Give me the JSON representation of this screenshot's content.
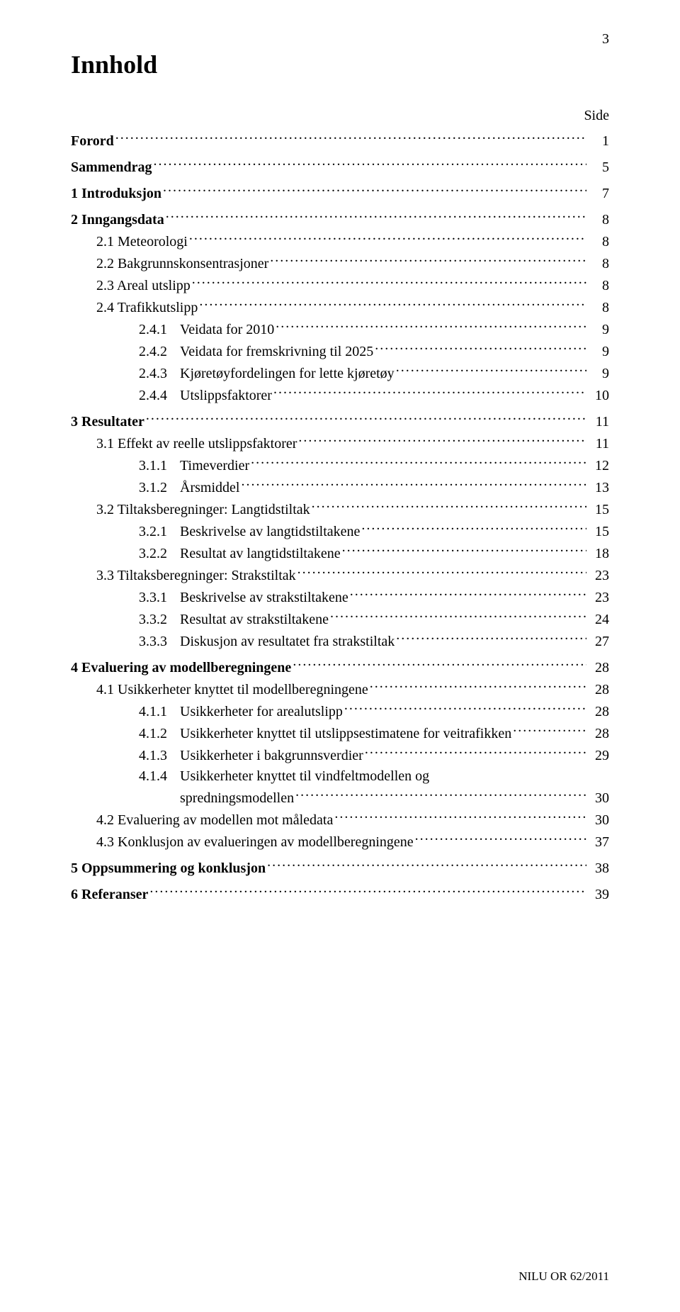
{
  "page_number_top": "3",
  "title": "Innhold",
  "side_label": "Side",
  "footer": "NILU OR 62/2011",
  "fonts": {
    "body_family": "Times New Roman",
    "title_size_pt": 28,
    "body_size_pt": 15
  },
  "colors": {
    "background": "#ffffff",
    "text": "#000000"
  },
  "toc": [
    {
      "bold": true,
      "indent": 0,
      "text": "Forord",
      "page": "1",
      "spacer_after": true
    },
    {
      "bold": true,
      "indent": 0,
      "text": "Sammendrag",
      "page": "5",
      "spacer_after": true
    },
    {
      "bold": true,
      "indent": 0,
      "text": "1   Introduksjon",
      "page": "7",
      "spacer_after": true
    },
    {
      "bold": true,
      "indent": 0,
      "text": "2   Inngangsdata",
      "page": "8"
    },
    {
      "bold": false,
      "indent": 1,
      "text": "2.1 Meteorologi",
      "page": "8"
    },
    {
      "bold": false,
      "indent": 1,
      "text": "2.2 Bakgrunnskonsentrasjoner",
      "page": "8"
    },
    {
      "bold": false,
      "indent": 1,
      "text": "2.3 Areal utslipp",
      "page": "8"
    },
    {
      "bold": false,
      "indent": 1,
      "text": "2.4 Trafikkutslipp",
      "page": "8"
    },
    {
      "bold": false,
      "indent": 2,
      "num": "2.4.1",
      "text": "Veidata for 2010",
      "page": "9"
    },
    {
      "bold": false,
      "indent": 2,
      "num": "2.4.2",
      "text": "Veidata for fremskrivning til 2025",
      "page": "9"
    },
    {
      "bold": false,
      "indent": 2,
      "num": "2.4.3",
      "text": "Kjøretøyfordelingen for lette kjøretøy",
      "page": "9"
    },
    {
      "bold": false,
      "indent": 2,
      "num": "2.4.4",
      "text": "Utslippsfaktorer",
      "page": "10",
      "spacer_after": true
    },
    {
      "bold": true,
      "indent": 0,
      "text": "3   Resultater",
      "page": "11"
    },
    {
      "bold": false,
      "indent": 1,
      "text": "3.1 Effekt av reelle utslippsfaktorer",
      "page": "11"
    },
    {
      "bold": false,
      "indent": 2,
      "num": "3.1.1",
      "text": "Timeverdier",
      "page": "12"
    },
    {
      "bold": false,
      "indent": 2,
      "num": "3.1.2",
      "text": "Årsmiddel",
      "page": "13"
    },
    {
      "bold": false,
      "indent": 1,
      "text": "3.2 Tiltaksberegninger: Langtidstiltak",
      "page": "15"
    },
    {
      "bold": false,
      "indent": 2,
      "num": "3.2.1",
      "text": "Beskrivelse av langtidstiltakene",
      "page": "15"
    },
    {
      "bold": false,
      "indent": 2,
      "num": "3.2.2",
      "text": "Resultat av langtidstiltakene",
      "page": "18"
    },
    {
      "bold": false,
      "indent": 1,
      "text": "3.3 Tiltaksberegninger: Strakstiltak",
      "page": "23"
    },
    {
      "bold": false,
      "indent": 2,
      "num": "3.3.1",
      "text": "Beskrivelse av strakstiltakene",
      "page": "23"
    },
    {
      "bold": false,
      "indent": 2,
      "num": "3.3.2",
      "text": "Resultat av strakstiltakene",
      "page": "24"
    },
    {
      "bold": false,
      "indent": 2,
      "num": "3.3.3",
      "text": "Diskusjon av resultatet fra strakstiltak",
      "page": "27",
      "spacer_after": true
    },
    {
      "bold": true,
      "indent": 0,
      "text": "4   Evaluering av modellberegningene",
      "page": "28"
    },
    {
      "bold": false,
      "indent": 1,
      "text": "4.1 Usikkerheter knyttet til modellberegningene",
      "page": "28"
    },
    {
      "bold": false,
      "indent": 2,
      "num": "4.1.1",
      "text": "Usikkerheter for arealutslipp",
      "page": "28"
    },
    {
      "bold": false,
      "indent": 2,
      "num": "4.1.2",
      "text": "Usikkerheter knyttet til utslippsestimatene for veitrafikken",
      "page": "28"
    },
    {
      "bold": false,
      "indent": 2,
      "num": "4.1.3",
      "text": "Usikkerheter i bakgrunnsverdier",
      "page": "29"
    },
    {
      "bold": false,
      "indent": 2,
      "num": "4.1.4",
      "text": "Usikkerheter knyttet til vindfeltmodellen og",
      "wrap_text": "spredningsmodellen",
      "page": "30"
    },
    {
      "bold": false,
      "indent": 1,
      "text": "4.2 Evaluering av modellen mot måledata",
      "page": "30"
    },
    {
      "bold": false,
      "indent": 1,
      "text": "4.3 Konklusjon av evalueringen av modellberegningene",
      "page": "37",
      "spacer_after": true
    },
    {
      "bold": true,
      "indent": 0,
      "text": "5   Oppsummering og konklusjon",
      "page": "38",
      "spacer_after": true
    },
    {
      "bold": true,
      "indent": 0,
      "text": "6   Referanser",
      "page": "39"
    }
  ]
}
